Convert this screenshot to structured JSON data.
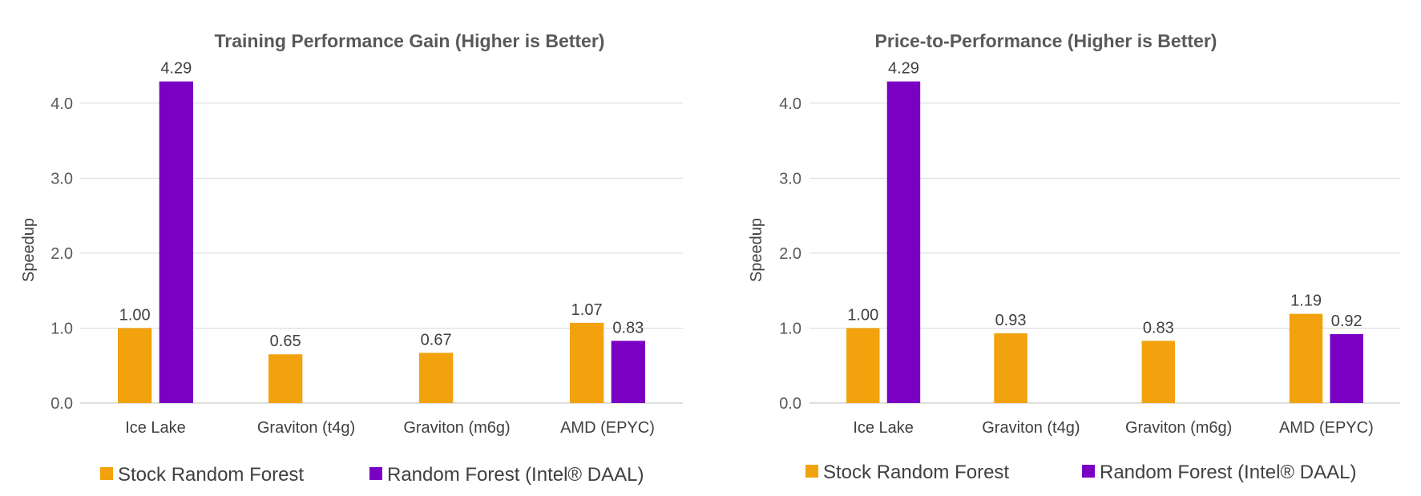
{
  "chart_data": [
    {
      "type": "bar",
      "title": "Training Performance Gain (Higher is Better)",
      "xlabel": "",
      "ylabel": "Speedup",
      "ylim": [
        0,
        4.5
      ],
      "yticks": [
        "0.0",
        "1.0",
        "2.0",
        "3.0",
        "4.0"
      ],
      "grid": true,
      "legend_position": "bottom",
      "categories": [
        "Ice Lake",
        "Graviton (t4g)",
        "Graviton (m6g)",
        "AMD (EPYC)"
      ],
      "series": [
        {
          "name": "Stock Random Forest",
          "color": "#f2a20c",
          "values": [
            1.0,
            0.65,
            0.67,
            1.07
          ],
          "labels": [
            "1.00",
            "0.65",
            "0.67",
            "1.07"
          ]
        },
        {
          "name": "Random Forest (Intel® DAAL)",
          "color": "#7a00c4",
          "values": [
            4.29,
            null,
            null,
            0.83
          ],
          "labels": [
            "4.29",
            null,
            null,
            "0.83"
          ]
        }
      ]
    },
    {
      "type": "bar",
      "title": "Price-to-Performance (Higher is Better)",
      "xlabel": "",
      "ylabel": "Speedup",
      "ylim": [
        0,
        4.5
      ],
      "yticks": [
        "0.0",
        "1.0",
        "2.0",
        "3.0",
        "4.0"
      ],
      "grid": true,
      "legend_position": "bottom",
      "categories": [
        "Ice Lake",
        "Graviton (t4g)",
        "Graviton (m6g)",
        "AMD (EPYC)"
      ],
      "series": [
        {
          "name": "Stock Random Forest",
          "color": "#f2a20c",
          "values": [
            1.0,
            0.93,
            0.83,
            1.19
          ],
          "labels": [
            "1.00",
            "0.93",
            "0.83",
            "1.19"
          ]
        },
        {
          "name": "Random Forest (Intel® DAAL)",
          "color": "#7a00c4",
          "values": [
            4.29,
            null,
            null,
            0.92
          ],
          "labels": [
            "4.29",
            null,
            null,
            "0.92"
          ]
        }
      ]
    }
  ]
}
